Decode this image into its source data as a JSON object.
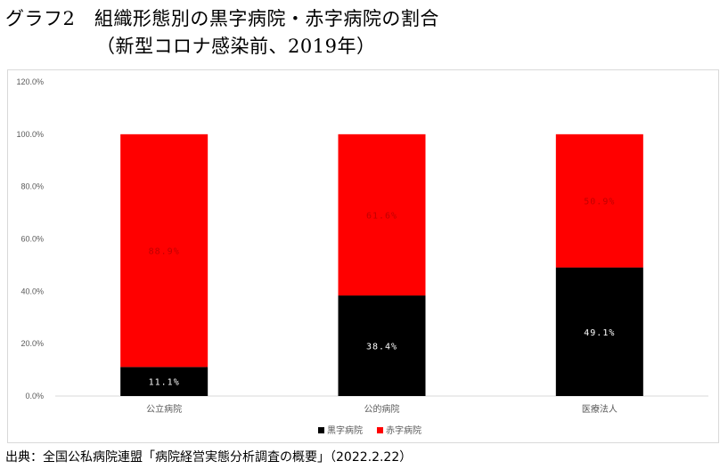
{
  "title": {
    "line1": "グラフ2　組織形態別の黒字病院・赤字病院の割合",
    "line2": "（新型コロナ感染前、2019年）"
  },
  "source": "出典：全国公私病院連盟「病院経営実態分析調査の概要」（2022.2.22）",
  "chart_data": {
    "type": "bar",
    "stacked": true,
    "categories": [
      "公立病院",
      "公的病院",
      "医療法人"
    ],
    "series": [
      {
        "name": "黒字病院",
        "values": [
          11.1,
          38.4,
          49.1
        ],
        "labels": [
          "11.1%",
          "38.4%",
          "49.1%"
        ],
        "color": "#000000",
        "label_color": "#ffffff"
      },
      {
        "name": "赤字病院",
        "values": [
          88.9,
          61.6,
          50.9
        ],
        "labels": [
          "88.9%",
          "61.6%",
          "50.9%"
        ],
        "color": "#ff0000",
        "label_color": "#c00000"
      }
    ],
    "ylim": [
      0,
      120
    ],
    "yticks": [
      0,
      20,
      40,
      60,
      80,
      100,
      120
    ],
    "ytick_labels": [
      "0.0%",
      "20.0%",
      "40.0%",
      "60.0%",
      "80.0%",
      "100.0%",
      "120.0%"
    ],
    "grid": false,
    "legend": "bottom-center"
  }
}
